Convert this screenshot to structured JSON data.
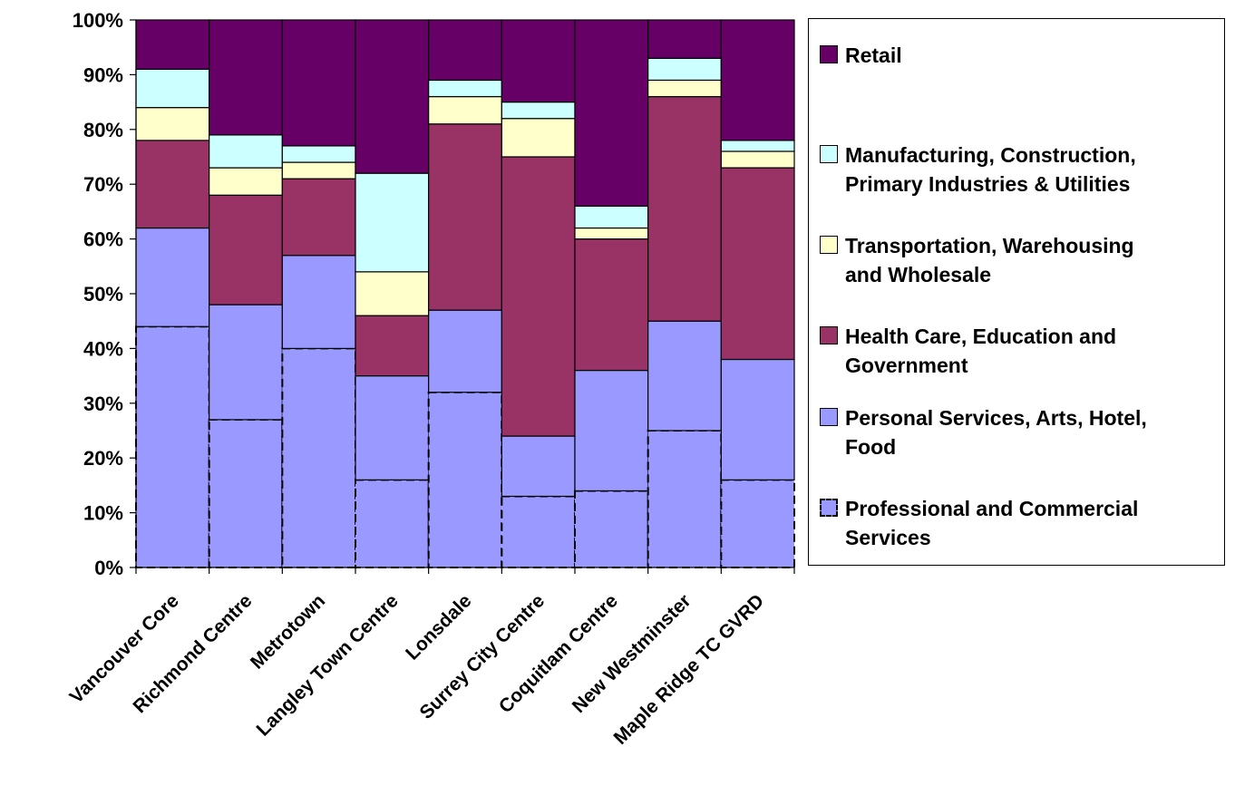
{
  "chart_data": {
    "type": "bar",
    "stacked": true,
    "categories": [
      "Vancouver Core",
      "Richmond Centre",
      "Metrotown",
      "Langley Town Centre",
      "Lonsdale",
      "Surrey City Centre",
      "Coquitlam Centre",
      "New Westminster",
      "Maple Ridge TC GVRD"
    ],
    "series": [
      {
        "name": "Professional and Commercial Services",
        "color": "#9999ff",
        "values": [
          44,
          27,
          40,
          16,
          32,
          13,
          14,
          25,
          16
        ]
      },
      {
        "name": "Personal Services, Arts, Hotel, Food",
        "color": "#9999ff",
        "values": [
          18,
          21,
          17,
          19,
          15,
          11,
          22,
          20,
          22
        ]
      },
      {
        "name": "Health Care, Education and Government",
        "color": "#993366",
        "values": [
          16,
          20,
          14,
          11,
          34,
          51,
          24,
          41,
          35
        ]
      },
      {
        "name": "Transportation, Warehousing and Wholesale",
        "color": "#ffffcc",
        "values": [
          6,
          5,
          3,
          8,
          5,
          7,
          2,
          3,
          3
        ]
      },
      {
        "name": "Manufacturing, Construction, Primary Industries & Utilities",
        "color": "#ccffff",
        "values": [
          7,
          6,
          3,
          18,
          3,
          3,
          4,
          4,
          2
        ]
      },
      {
        "name": "Retail",
        "color": "#660066",
        "values": [
          9,
          21,
          23,
          28,
          11,
          15,
          34,
          7,
          22
        ]
      }
    ],
    "ylim": [
      0,
      100
    ],
    "yticks": [
      "0%",
      "10%",
      "20%",
      "30%",
      "40%",
      "50%",
      "60%",
      "70%",
      "80%",
      "90%",
      "100%"
    ],
    "legend_position": "right",
    "grid": false
  },
  "legend": {
    "entries": [
      {
        "label": "Retail",
        "color": "#660066"
      },
      {
        "label": "Manufacturing, Construction,\nPrimary Industries & Utilities",
        "color": "#ccffff"
      },
      {
        "label": "Transportation, Warehousing\nand Wholesale",
        "color": "#ffffcc"
      },
      {
        "label": "Health Care, Education and\nGovernment",
        "color": "#993366"
      },
      {
        "label": "Personal Services, Arts, Hotel,\nFood",
        "color": "#9999ff"
      },
      {
        "label": "Professional and Commercial\nServices",
        "color": "#9999ff"
      }
    ]
  }
}
